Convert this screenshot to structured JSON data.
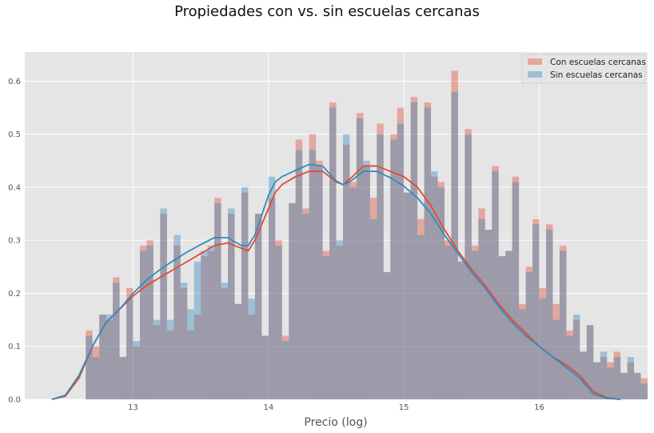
{
  "chart_data": {
    "type": "histogram",
    "title": "Propiedades con vs. sin escuelas cercanas",
    "xlabel": "Precio (log)",
    "ylabel": "",
    "xlim": [
      12.2,
      16.8
    ],
    "ylim": [
      0,
      0.655
    ],
    "xticks": [
      "13",
      "14",
      "15",
      "16"
    ],
    "yticks": [
      "0.0",
      "0.1",
      "0.2",
      "0.3",
      "0.4",
      "0.5",
      "0.6"
    ],
    "grid": true,
    "legend_position": "top-right",
    "bin_width": 0.05,
    "bin_start": 12.65,
    "series": [
      {
        "name": "Con escuelas cercanas",
        "color": "#E24A33",
        "kde_color": "#E24A33",
        "values": [
          0.13,
          0.1,
          0.16,
          0.15,
          0.23,
          0.08,
          0.21,
          0.1,
          0.29,
          0.3,
          0.14,
          0.35,
          0.13,
          0.29,
          0.21,
          0.13,
          0.16,
          0.27,
          0.28,
          0.38,
          0.21,
          0.35,
          0.18,
          0.39,
          0.16,
          0.35,
          0.12,
          0.38,
          0.3,
          0.12,
          0.37,
          0.49,
          0.36,
          0.5,
          0.45,
          0.28,
          0.56,
          0.29,
          0.48,
          0.41,
          0.54,
          0.44,
          0.38,
          0.52,
          0.24,
          0.5,
          0.55,
          0.39,
          0.57,
          0.34,
          0.56,
          0.42,
          0.41,
          0.3,
          0.62,
          0.26,
          0.51,
          0.29,
          0.36,
          0.32,
          0.44,
          0.27,
          0.28,
          0.42,
          0.18,
          0.25,
          0.34,
          0.21,
          0.33,
          0.18,
          0.29,
          0.13,
          0.15,
          0.09,
          0.14,
          0.07,
          0.08,
          0.07,
          0.09,
          0.05,
          0.07,
          0.05,
          0.04
        ],
        "kde_x": [
          12.4,
          12.5,
          12.6,
          12.7,
          12.8,
          12.9,
          13.0,
          13.1,
          13.2,
          13.3,
          13.4,
          13.5,
          13.6,
          13.7,
          13.8,
          13.85,
          13.9,
          14.0,
          14.05,
          14.1,
          14.2,
          14.3,
          14.4,
          14.5,
          14.55,
          14.6,
          14.7,
          14.8,
          14.9,
          15.0,
          15.1,
          15.2,
          15.3,
          15.4,
          15.5,
          15.6,
          15.7,
          15.8,
          15.9,
          16.0,
          16.1,
          16.2,
          16.3,
          16.4,
          16.5,
          16.6
        ],
        "kde_y": [
          0.0,
          0.006,
          0.04,
          0.1,
          0.145,
          0.17,
          0.195,
          0.215,
          0.23,
          0.245,
          0.26,
          0.275,
          0.29,
          0.295,
          0.285,
          0.28,
          0.3,
          0.36,
          0.39,
          0.405,
          0.42,
          0.43,
          0.43,
          0.41,
          0.405,
          0.415,
          0.44,
          0.44,
          0.43,
          0.42,
          0.4,
          0.365,
          0.32,
          0.28,
          0.245,
          0.215,
          0.18,
          0.15,
          0.125,
          0.1,
          0.08,
          0.065,
          0.045,
          0.015,
          0.003,
          0.0
        ]
      },
      {
        "name": "Sin escuelas cercanas",
        "color": "#348ABD",
        "kde_color": "#348ABD",
        "values": [
          0.12,
          0.08,
          0.16,
          0.16,
          0.22,
          0.08,
          0.19,
          0.11,
          0.28,
          0.29,
          0.15,
          0.36,
          0.15,
          0.31,
          0.22,
          0.17,
          0.26,
          0.28,
          0.29,
          0.37,
          0.22,
          0.36,
          0.18,
          0.4,
          0.19,
          0.35,
          0.12,
          0.42,
          0.29,
          0.11,
          0.37,
          0.47,
          0.35,
          0.47,
          0.44,
          0.27,
          0.55,
          0.3,
          0.5,
          0.4,
          0.53,
          0.45,
          0.34,
          0.5,
          0.24,
          0.49,
          0.52,
          0.39,
          0.56,
          0.31,
          0.55,
          0.43,
          0.4,
          0.29,
          0.58,
          0.26,
          0.5,
          0.28,
          0.34,
          0.32,
          0.43,
          0.27,
          0.28,
          0.41,
          0.17,
          0.24,
          0.33,
          0.19,
          0.32,
          0.15,
          0.28,
          0.12,
          0.16,
          0.09,
          0.14,
          0.07,
          0.09,
          0.06,
          0.08,
          0.05,
          0.08,
          0.05,
          0.03
        ],
        "kde_x": [
          12.4,
          12.5,
          12.6,
          12.7,
          12.8,
          12.9,
          13.0,
          13.1,
          13.2,
          13.3,
          13.4,
          13.5,
          13.6,
          13.7,
          13.8,
          13.85,
          13.9,
          14.0,
          14.05,
          14.1,
          14.2,
          14.3,
          14.4,
          14.5,
          14.55,
          14.6,
          14.7,
          14.8,
          14.9,
          15.0,
          15.1,
          15.2,
          15.3,
          15.4,
          15.5,
          15.6,
          15.7,
          15.8,
          15.9,
          16.0,
          16.1,
          16.2,
          16.3,
          16.4,
          16.5,
          16.6
        ],
        "kde_y": [
          0.0,
          0.008,
          0.045,
          0.1,
          0.145,
          0.17,
          0.2,
          0.225,
          0.245,
          0.262,
          0.278,
          0.292,
          0.305,
          0.305,
          0.29,
          0.29,
          0.31,
          0.385,
          0.41,
          0.42,
          0.432,
          0.443,
          0.44,
          0.412,
          0.405,
          0.41,
          0.43,
          0.43,
          0.418,
          0.402,
          0.38,
          0.35,
          0.31,
          0.275,
          0.24,
          0.21,
          0.175,
          0.145,
          0.12,
          0.1,
          0.08,
          0.06,
          0.04,
          0.01,
          0.002,
          0.0
        ]
      }
    ]
  }
}
